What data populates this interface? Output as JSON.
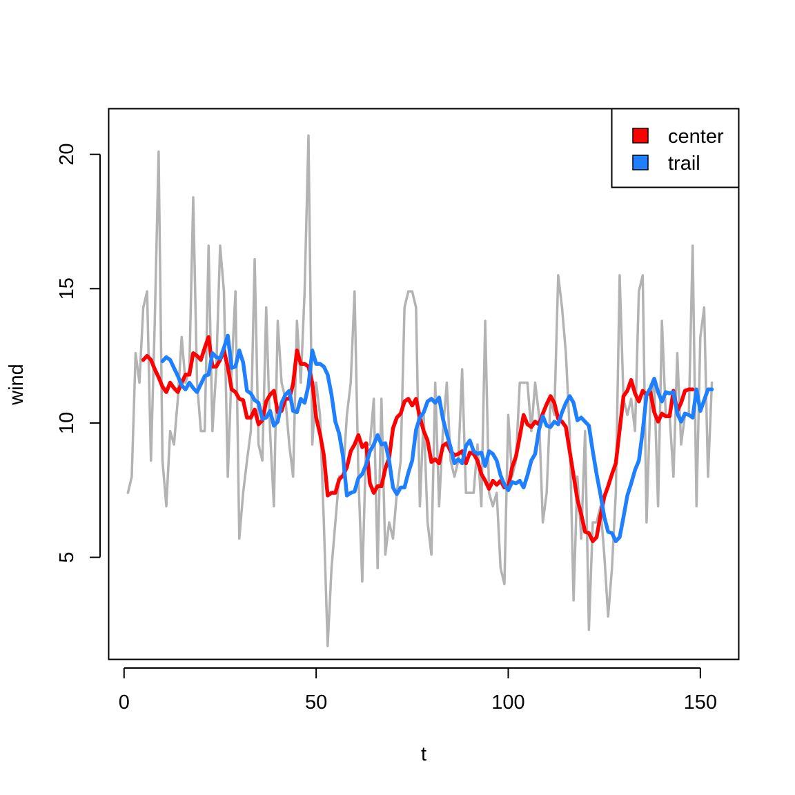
{
  "chart_data": {
    "type": "line",
    "title": "",
    "xlabel": "t",
    "ylabel": "wind",
    "xlim": [
      -4,
      160
    ],
    "ylim": [
      1.2,
      21.7
    ],
    "x_ticks": [
      0,
      50,
      100,
      150
    ],
    "y_ticks": [
      5,
      10,
      15,
      20
    ],
    "legend": {
      "position": "top-right",
      "entries": [
        {
          "label": "center",
          "color": "#ff0000"
        },
        {
          "label": "trail",
          "color": "#1e80ff"
        }
      ]
    },
    "series": [
      {
        "role": "raw",
        "color": "#b3b3b3",
        "x_start": 1,
        "values": [
          7.4,
          8,
          12.6,
          11.5,
          14.3,
          14.9,
          8.6,
          13.8,
          20.1,
          8.6,
          6.9,
          9.7,
          9.2,
          10.9,
          13.2,
          11.5,
          12,
          18.4,
          11.5,
          9.7,
          9.7,
          16.6,
          9.7,
          12,
          16.6,
          14.9,
          8,
          12,
          14.9,
          5.7,
          7.4,
          8.6,
          9.7,
          16.1,
          9.2,
          8.6,
          14.3,
          9.7,
          6.9,
          13.8,
          11.5,
          10.9,
          9.2,
          8,
          13.8,
          11.5,
          14.9,
          20.7,
          9.2,
          11.5,
          10.3,
          6.3,
          1.7,
          4.6,
          6.3,
          8,
          8,
          10.3,
          11.5,
          14.9,
          8,
          4.1,
          9.2,
          9.2,
          10.9,
          4.6,
          10.9,
          5.1,
          6.3,
          5.7,
          7.4,
          8.6,
          14.3,
          14.9,
          14.9,
          14.3,
          6.9,
          10.3,
          6.3,
          5.1,
          11.5,
          6.9,
          9.7,
          11.5,
          8.6,
          8,
          8.6,
          12,
          7.4,
          7.4,
          7.4,
          9.2,
          6.9,
          13.8,
          7.4,
          6.9,
          7.4,
          4.6,
          4,
          10.3,
          8,
          8.6,
          11.5,
          11.5,
          11.5,
          9.7,
          11.5,
          10.3,
          6.3,
          7.4,
          10.9,
          10.3,
          15.5,
          14.3,
          12.6,
          9.7,
          3.4,
          8,
          5.7,
          9.7,
          2.3,
          6.3,
          6.3,
          6.9,
          5.1,
          2.8,
          4.6,
          7.4,
          15.5,
          10.9,
          10.3,
          10.9,
          9.7,
          14.9,
          15.5,
          6.3,
          10.9,
          11.5,
          6.9,
          13.8,
          10.3,
          10.3,
          8,
          12.6,
          9.2,
          10.3,
          10.3,
          16.6,
          6.9,
          13.2,
          14.3,
          8,
          11.5
        ]
      },
      {
        "name": "center",
        "color": "#ff0000",
        "x_start": 5,
        "values": [
          12.35,
          12.5,
          12.35,
          12,
          11.7,
          11.35,
          11.15,
          11.5,
          11.3,
          11.15,
          11.5,
          11.8,
          11.8,
          12.6,
          12.5,
          12.35,
          12.8,
          13.2,
          12.1,
          12.1,
          12.35,
          12.7,
          12.1,
          11.25,
          11.15,
          10.9,
          10.85,
          10.2,
          10.2,
          10.5,
          9.95,
          10.1,
          10.8,
          11.05,
          11.2,
          10.4,
          10.45,
          10.9,
          10.9,
          11.45,
          12.7,
          12.2,
          12.2,
          12.1,
          11.5,
          10.2,
          9.6,
          8.8,
          7.3,
          7.4,
          7.4,
          7.9,
          8.05,
          8.35,
          8.95,
          9.2,
          9.55,
          9.1,
          9.25,
          7.75,
          7.4,
          7.65,
          7.65,
          8.3,
          8.7,
          9.8,
          10.2,
          10.35,
          10.8,
          10.9,
          10.65,
          10.9,
          10.2,
          9.7,
          9.35,
          8.55,
          8.65,
          8.5,
          9.15,
          9.25,
          8.95,
          8.8,
          8.85,
          8.95,
          8.5,
          8.9,
          8.85,
          8.6,
          8.1,
          7.85,
          7.55,
          7.85,
          7.7,
          7.85,
          7.6,
          7.6,
          8.35,
          8.75,
          9.5,
          10.3,
          9.95,
          9.85,
          10.05,
          9.95,
          10.35,
          10.7,
          11,
          10.75,
          10.15,
          10.05,
          9.85,
          8.95,
          8.05,
          7.15,
          6.6,
          5.95,
          5.9,
          5.6,
          5.75,
          6.55,
          7.25,
          7.65,
          8.1,
          8.5,
          9.75,
          11,
          11.2,
          11.6,
          11.1,
          10.8,
          11.2,
          11.05,
          11.15,
          10.4,
          10.05,
          10.35,
          10.25,
          10.25,
          11.2,
          10.45,
          10.75,
          11.2,
          11.25,
          11.25
        ]
      },
      {
        "name": "trail",
        "color": "#1e80ff",
        "x_start": 10,
        "values": [
          12.3,
          12.45,
          12.35,
          12.05,
          11.75,
          11.4,
          11.25,
          11.5,
          11.3,
          11.15,
          11.45,
          11.75,
          11.8,
          12.6,
          12.45,
          12.4,
          12.8,
          13.25,
          12.05,
          12.1,
          12.7,
          12.25,
          11.2,
          11.1,
          10.85,
          10.75,
          10.15,
          10.2,
          10.45,
          9.9,
          10.05,
          10.75,
          11.05,
          11.2,
          10.45,
          10.4,
          10.9,
          10.75,
          11.4,
          12.7,
          12.2,
          12.2,
          12.1,
          11.8,
          11.05,
          10.05,
          9.6,
          8.75,
          7.3,
          7.4,
          7.45,
          7.95,
          8.1,
          8.45,
          8.95,
          9.2,
          9.55,
          9.2,
          9.25,
          8.6,
          7.6,
          7.35,
          7.6,
          7.6,
          8.15,
          8.6,
          9.75,
          10.2,
          10.4,
          10.8,
          10.9,
          10.75,
          10.95,
          10.15,
          9.6,
          9.1,
          8.5,
          8.65,
          8.5,
          9.15,
          9.35,
          8.95,
          8.85,
          8.9,
          8.4,
          8.95,
          8.85,
          8.6,
          8.05,
          7.7,
          7.5,
          7.8,
          7.75,
          7.85,
          7.6,
          8.05,
          8.6,
          8.85,
          9.75,
          10.25,
          9.9,
          9.85,
          10.05,
          9.95,
          10.4,
          10.75,
          11,
          10.75,
          10.1,
          10.2,
          10.05,
          9.9,
          8.95,
          8.1,
          7.35,
          6.5,
          5.95,
          5.9,
          5.6,
          5.75,
          6.5,
          7.3,
          7.75,
          8.25,
          8.6,
          9.7,
          11.05,
          11.3,
          11.65,
          11.15,
          10.8,
          11.15,
          11.1,
          11.15,
          10.35,
          10.05,
          10.35,
          10.3,
          10.2,
          11.25,
          10.45,
          10.85,
          11.25,
          11.25
        ]
      }
    ]
  }
}
